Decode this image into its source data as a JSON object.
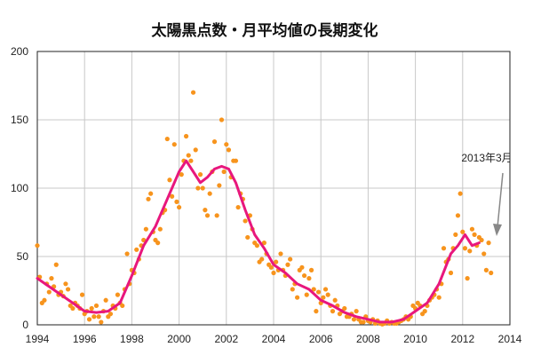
{
  "chart_data": {
    "type": "scatter",
    "title": "太陽黒点数・月平均値の長期変化",
    "xlabel": "",
    "ylabel": "",
    "xlim": [
      1994,
      2014
    ],
    "ylim": [
      0,
      200
    ],
    "x_ticks": [
      "1994",
      "1996",
      "1998",
      "2000",
      "2002",
      "2004",
      "2006",
      "2008",
      "2010",
      "2012",
      "2014"
    ],
    "y_ticks": [
      "0",
      "50",
      "100",
      "150",
      "200"
    ],
    "grid": true,
    "legend": "none",
    "annotation": {
      "text": "2013年3月",
      "x": 2013.2,
      "y": 65
    },
    "series": [
      {
        "kind": "scatter",
        "color": "#f7941d",
        "points": [
          [
            1994.0,
            58
          ],
          [
            1994.1,
            35
          ],
          [
            1994.2,
            16
          ],
          [
            1994.3,
            18
          ],
          [
            1994.4,
            30
          ],
          [
            1994.5,
            24
          ],
          [
            1994.6,
            34
          ],
          [
            1994.7,
            28
          ],
          [
            1994.8,
            44
          ],
          [
            1994.9,
            22
          ],
          [
            1995.0,
            24
          ],
          [
            1995.1,
            21
          ],
          [
            1995.2,
            30
          ],
          [
            1995.3,
            26
          ],
          [
            1995.4,
            14
          ],
          [
            1995.5,
            12
          ],
          [
            1995.6,
            16
          ],
          [
            1995.7,
            14
          ],
          [
            1995.8,
            12
          ],
          [
            1995.9,
            22
          ],
          [
            1996.0,
            8
          ],
          [
            1996.1,
            10
          ],
          [
            1996.2,
            4
          ],
          [
            1996.3,
            12
          ],
          [
            1996.4,
            6
          ],
          [
            1996.5,
            14
          ],
          [
            1996.6,
            6
          ],
          [
            1996.7,
            2
          ],
          [
            1996.8,
            10
          ],
          [
            1996.9,
            18
          ],
          [
            1997.0,
            6
          ],
          [
            1997.1,
            8
          ],
          [
            1997.2,
            14
          ],
          [
            1997.3,
            12
          ],
          [
            1997.4,
            22
          ],
          [
            1997.5,
            16
          ],
          [
            1997.6,
            14
          ],
          [
            1997.7,
            26
          ],
          [
            1997.8,
            52
          ],
          [
            1997.9,
            30
          ],
          [
            1998.0,
            40
          ],
          [
            1998.1,
            38
          ],
          [
            1998.2,
            55
          ],
          [
            1998.3,
            48
          ],
          [
            1998.4,
            58
          ],
          [
            1998.5,
            62
          ],
          [
            1998.6,
            70
          ],
          [
            1998.7,
            92
          ],
          [
            1998.8,
            96
          ],
          [
            1998.9,
            68
          ],
          [
            1999.0,
            62
          ],
          [
            1999.1,
            60
          ],
          [
            1999.2,
            70
          ],
          [
            1999.3,
            82
          ],
          [
            1999.4,
            84
          ],
          [
            1999.5,
            136
          ],
          [
            1999.6,
            106
          ],
          [
            1999.7,
            94
          ],
          [
            1999.8,
            132
          ],
          [
            1999.9,
            90
          ],
          [
            2000.0,
            86
          ],
          [
            2000.1,
            110
          ],
          [
            2000.2,
            120
          ],
          [
            2000.3,
            138
          ],
          [
            2000.4,
            124
          ],
          [
            2000.5,
            120
          ],
          [
            2000.6,
            170
          ],
          [
            2000.7,
            128
          ],
          [
            2000.8,
            100
          ],
          [
            2000.9,
            110
          ],
          [
            2001.0,
            100
          ],
          [
            2001.1,
            84
          ],
          [
            2001.2,
            80
          ],
          [
            2001.3,
            96
          ],
          [
            2001.4,
            112
          ],
          [
            2001.5,
            134
          ],
          [
            2001.6,
            80
          ],
          [
            2001.7,
            102
          ],
          [
            2001.8,
            150
          ],
          [
            2001.9,
            112
          ],
          [
            2002.0,
            132
          ],
          [
            2002.1,
            128
          ],
          [
            2002.2,
            108
          ],
          [
            2002.3,
            120
          ],
          [
            2002.4,
            120
          ],
          [
            2002.5,
            86
          ],
          [
            2002.6,
            96
          ],
          [
            2002.7,
            92
          ],
          [
            2002.8,
            76
          ],
          [
            2002.9,
            64
          ],
          [
            2003.0,
            80
          ],
          [
            2003.1,
            70
          ],
          [
            2003.2,
            60
          ],
          [
            2003.3,
            58
          ],
          [
            2003.4,
            46
          ],
          [
            2003.5,
            48
          ],
          [
            2003.6,
            60
          ],
          [
            2003.7,
            52
          ],
          [
            2003.8,
            44
          ],
          [
            2003.9,
            42
          ],
          [
            2004.0,
            38
          ],
          [
            2004.1,
            46
          ],
          [
            2004.2,
            40
          ],
          [
            2004.3,
            52
          ],
          [
            2004.4,
            40
          ],
          [
            2004.5,
            36
          ],
          [
            2004.6,
            44
          ],
          [
            2004.7,
            48
          ],
          [
            2004.8,
            26
          ],
          [
            2004.9,
            30
          ],
          [
            2005.0,
            20
          ],
          [
            2005.1,
            40
          ],
          [
            2005.2,
            42
          ],
          [
            2005.3,
            36
          ],
          [
            2005.4,
            22
          ],
          [
            2005.5,
            34
          ],
          [
            2005.6,
            40
          ],
          [
            2005.7,
            26
          ],
          [
            2005.8,
            10
          ],
          [
            2005.9,
            24
          ],
          [
            2006.0,
            16
          ],
          [
            2006.1,
            20
          ],
          [
            2006.2,
            26
          ],
          [
            2006.3,
            22
          ],
          [
            2006.4,
            14
          ],
          [
            2006.5,
            10
          ],
          [
            2006.6,
            18
          ],
          [
            2006.7,
            14
          ],
          [
            2006.8,
            8
          ],
          [
            2006.9,
            10
          ],
          [
            2007.0,
            12
          ],
          [
            2007.1,
            6
          ],
          [
            2007.2,
            6
          ],
          [
            2007.3,
            8
          ],
          [
            2007.4,
            4
          ],
          [
            2007.5,
            10
          ],
          [
            2007.6,
            4
          ],
          [
            2007.7,
            2
          ],
          [
            2007.8,
            2
          ],
          [
            2007.9,
            6
          ],
          [
            2008.0,
            3
          ],
          [
            2008.1,
            2
          ],
          [
            2008.2,
            4
          ],
          [
            2008.3,
            1
          ],
          [
            2008.4,
            3
          ],
          [
            2008.5,
            1
          ],
          [
            2008.6,
            0.5
          ],
          [
            2008.7,
            1
          ],
          [
            2008.8,
            3
          ],
          [
            2008.9,
            1
          ],
          [
            2009.0,
            2
          ],
          [
            2009.1,
            1
          ],
          [
            2009.2,
            1
          ],
          [
            2009.3,
            2
          ],
          [
            2009.4,
            3
          ],
          [
            2009.5,
            4
          ],
          [
            2009.6,
            6
          ],
          [
            2009.7,
            4
          ],
          [
            2009.8,
            6
          ],
          [
            2009.9,
            14
          ],
          [
            2010.0,
            12
          ],
          [
            2010.1,
            16
          ],
          [
            2010.2,
            14
          ],
          [
            2010.3,
            8
          ],
          [
            2010.4,
            10
          ],
          [
            2010.5,
            14
          ],
          [
            2010.6,
            18
          ],
          [
            2010.7,
            20
          ],
          [
            2010.8,
            22
          ],
          [
            2010.9,
            26
          ],
          [
            2011.0,
            20
          ],
          [
            2011.1,
            30
          ],
          [
            2011.2,
            56
          ],
          [
            2011.3,
            46
          ],
          [
            2011.4,
            48
          ],
          [
            2011.5,
            38
          ],
          [
            2011.6,
            56
          ],
          [
            2011.7,
            66
          ],
          [
            2011.8,
            80
          ],
          [
            2011.9,
            96
          ],
          [
            2012.0,
            68
          ],
          [
            2012.1,
            56
          ],
          [
            2012.2,
            34
          ],
          [
            2012.3,
            54
          ],
          [
            2012.4,
            70
          ],
          [
            2012.5,
            66
          ],
          [
            2012.6,
            58
          ],
          [
            2012.7,
            64
          ],
          [
            2012.8,
            62
          ],
          [
            2012.9,
            52
          ],
          [
            2013.0,
            40
          ],
          [
            2013.1,
            60
          ],
          [
            2013.2,
            38
          ]
        ]
      },
      {
        "kind": "line",
        "color": "#e8177d",
        "points": [
          [
            1994.0,
            34
          ],
          [
            1994.5,
            28
          ],
          [
            1995.0,
            22
          ],
          [
            1995.5,
            16
          ],
          [
            1996.0,
            10
          ],
          [
            1996.5,
            9
          ],
          [
            1997.0,
            10
          ],
          [
            1997.5,
            16
          ],
          [
            1998.0,
            36
          ],
          [
            1998.5,
            58
          ],
          [
            1999.0,
            72
          ],
          [
            1999.5,
            92
          ],
          [
            2000.0,
            112
          ],
          [
            2000.3,
            120
          ],
          [
            2000.6,
            112
          ],
          [
            2000.9,
            104
          ],
          [
            2001.2,
            108
          ],
          [
            2001.5,
            114
          ],
          [
            2001.8,
            116
          ],
          [
            2002.1,
            114
          ],
          [
            2002.4,
            104
          ],
          [
            2002.8,
            84
          ],
          [
            2003.2,
            66
          ],
          [
            2003.6,
            56
          ],
          [
            2004.0,
            44
          ],
          [
            2004.5,
            38
          ],
          [
            2005.0,
            30
          ],
          [
            2005.5,
            26
          ],
          [
            2006.0,
            18
          ],
          [
            2006.5,
            14
          ],
          [
            2007.0,
            9
          ],
          [
            2007.5,
            6
          ],
          [
            2008.0,
            4
          ],
          [
            2008.5,
            2
          ],
          [
            2009.0,
            2
          ],
          [
            2009.5,
            4
          ],
          [
            2010.0,
            10
          ],
          [
            2010.5,
            16
          ],
          [
            2011.0,
            30
          ],
          [
            2011.5,
            52
          ],
          [
            2011.8,
            58
          ],
          [
            2012.1,
            66
          ],
          [
            2012.4,
            58
          ],
          [
            2012.7,
            60
          ]
        ]
      }
    ]
  }
}
